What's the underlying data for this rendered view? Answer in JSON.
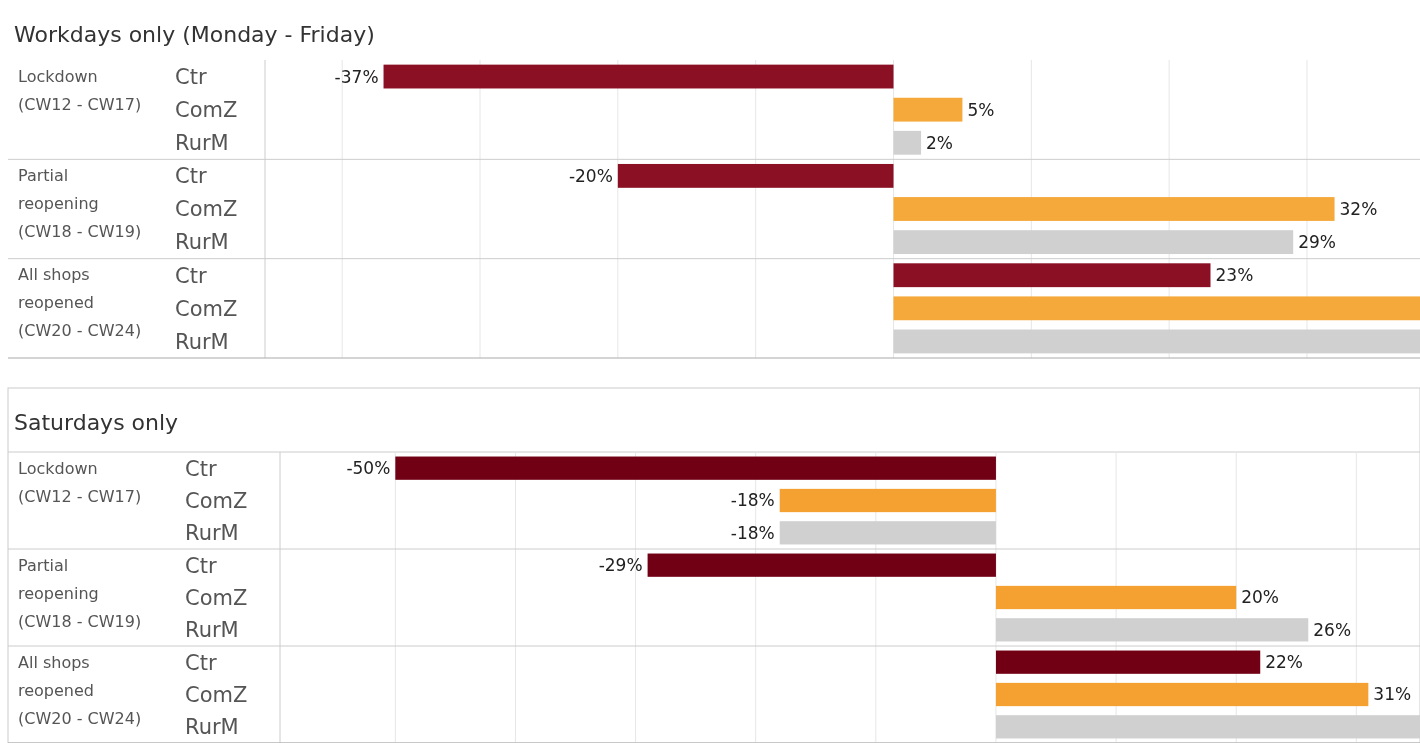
{
  "chart_data": [
    {
      "type": "bar",
      "orientation": "horizontal",
      "title": "Workdays only (Monday - Friday)",
      "annotations": [
        "Lockdown (CW12 - CW17)",
        "Partial reopening (CW18 - CW19)",
        "All shops reopened (CW20 - CW24)"
      ],
      "categories": [
        "Ctr",
        "ComZ",
        "RurM",
        "Ctr",
        "ComZ",
        "RurM",
        "Ctr",
        "ComZ",
        "RurM"
      ],
      "values": [
        -37,
        5,
        2,
        -20,
        32,
        29,
        23,
        38.2,
        38.2
      ],
      "colors": [
        "#8b1024",
        "#f5a93b",
        "#d0d0d0",
        "#8b1024",
        "#f5a93b",
        "#d0d0d0",
        "#8b1024",
        "#f5a93b",
        "#d0d0d0"
      ],
      "value_labels": [
        "-37%",
        "5%",
        "2%",
        "-20%",
        "32%",
        "29%",
        "23%",
        null,
        null
      ],
      "xlim": [
        -45.6,
        38.2
      ],
      "xticks": [
        {
          "value": -40,
          "label": null
        },
        {
          "value": -30,
          "label": null
        },
        {
          "value": -20,
          "label": null
        },
        {
          "value": -10,
          "label": null
        },
        {
          "value": 0,
          "label": null
        },
        {
          "value": 10,
          "label": null
        },
        {
          "value": 20,
          "label": null
        },
        {
          "value": 30,
          "label": null
        }
      ],
      "grid": "x"
    },
    {
      "type": "bar",
      "orientation": "horizontal",
      "title": "Saturdays only",
      "annotations": [
        "Lockdown (CW12 - CW17)",
        "Partial reopening (CW18 - CW19)",
        "All shops reopened (CW20 - CW24)"
      ],
      "categories": [
        "Ctr",
        "ComZ",
        "RurM",
        "Ctr",
        "ComZ",
        "RurM",
        "Ctr",
        "ComZ",
        "RurM"
      ],
      "values": [
        -50,
        -18,
        -18,
        -29,
        20,
        26,
        22,
        31,
        35.3
      ],
      "colors": [
        "#720015",
        "#f5a131",
        "#d0d0d0",
        "#720015",
        "#f5a131",
        "#d0d0d0",
        "#720015",
        "#f5a131",
        "#d0d0d0"
      ],
      "value_labels": [
        "-50%",
        "-18%",
        "-18%",
        "-29%",
        "20%",
        "26%",
        "22%",
        "31%",
        null
      ],
      "xlim": [
        -59.6,
        35.3
      ],
      "xticks": [
        {
          "value": -50,
          "label": null
        },
        {
          "value": -40,
          "label": null
        },
        {
          "value": -30,
          "label": null
        },
        {
          "value": -20,
          "label": null
        },
        {
          "value": -10,
          "label": null
        },
        {
          "value": 0,
          "label": null
        },
        {
          "value": 10,
          "label": null
        },
        {
          "value": 20,
          "label": null
        },
        {
          "value": 30,
          "label": null
        }
      ],
      "grid": "x"
    }
  ]
}
